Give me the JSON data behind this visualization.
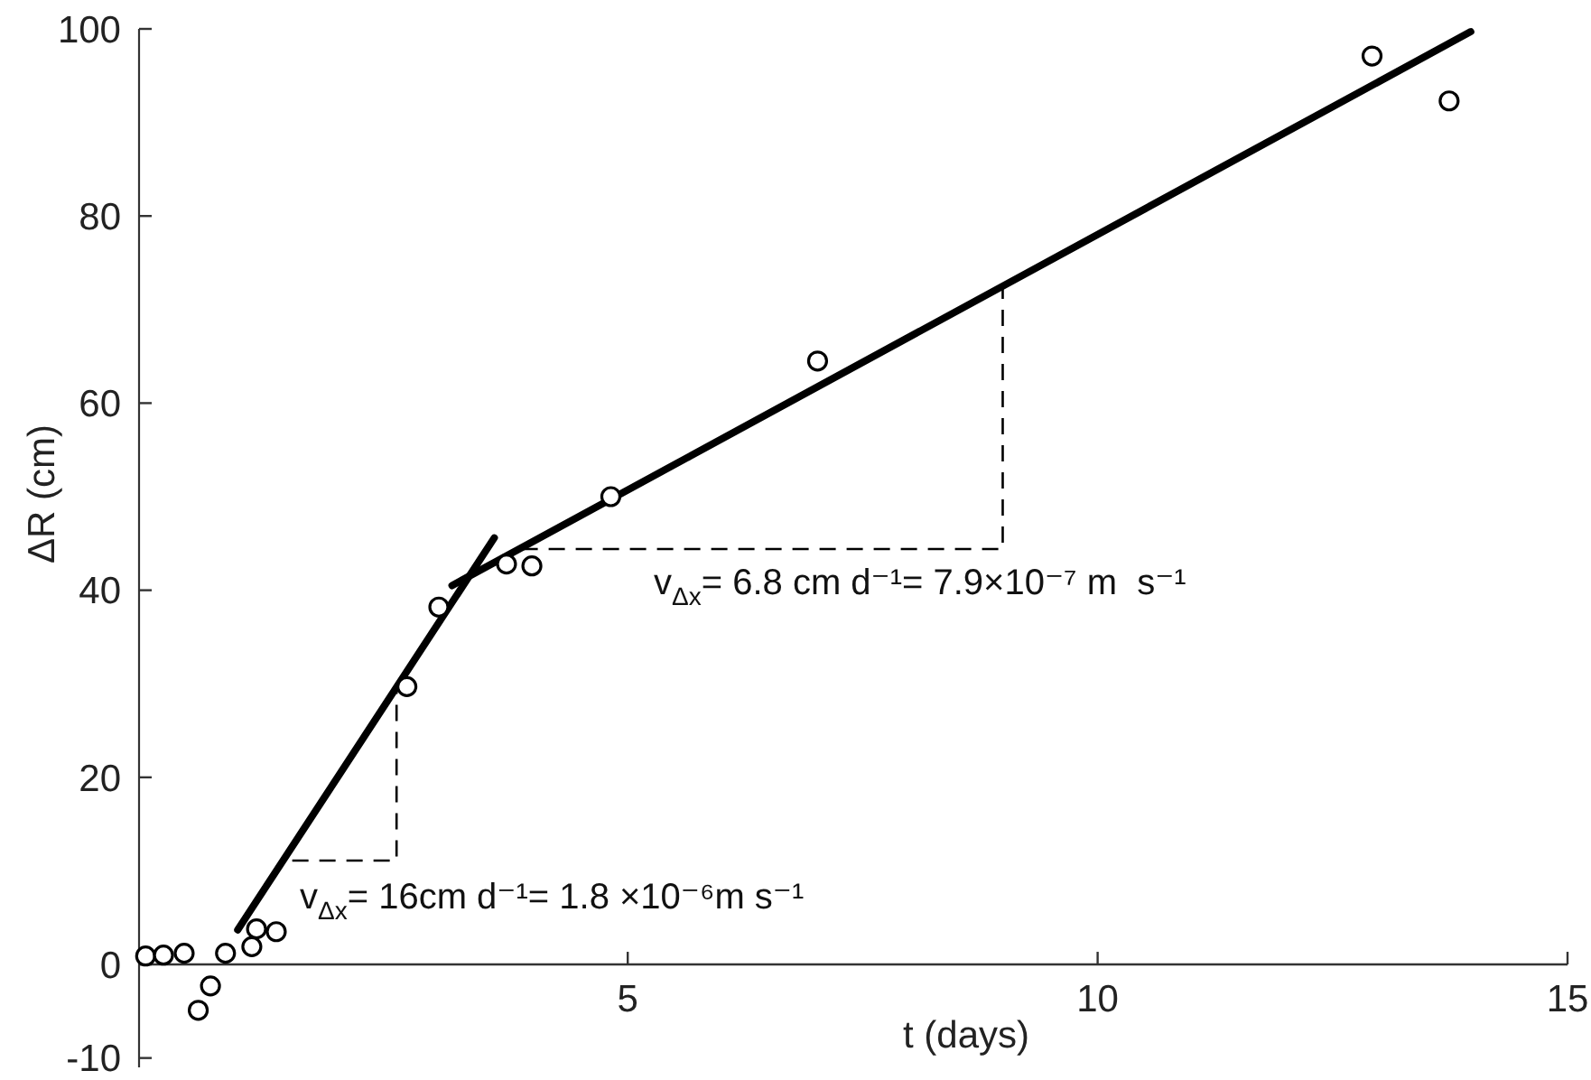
{
  "chart_data": {
    "type": "scatter",
    "xlabel": "t (days)",
    "ylabel": "ΔR (cm)",
    "xlim": [
      -0.2,
      15
    ],
    "ylim": [
      -11,
      100
    ],
    "xticks": [
      5,
      10,
      15
    ],
    "yticks": [
      -10,
      0,
      20,
      40,
      60,
      80,
      100
    ],
    "series": [
      {
        "type": "line",
        "color": "#000000",
        "x": [
          0.85,
          3.58
        ],
        "values": [
          3.7,
          45.6
        ]
      },
      {
        "type": "line",
        "color": "#000000",
        "x": [
          3.13,
          13.97
        ],
        "values": [
          40.5,
          99.7
        ]
      },
      {
        "type": "line",
        "color": "#000000",
        "line_style": "dashed",
        "x": [
          1.43,
          2.54,
          2.54
        ],
        "values": [
          11.1,
          11.1,
          29.6
        ]
      },
      {
        "type": "line",
        "color": "#000000",
        "line_style": "dashed",
        "x": [
          3.87,
          8.99,
          8.99
        ],
        "values": [
          44.4,
          44.4,
          72.5
        ]
      },
      {
        "color": "#000000",
        "marker": "circle",
        "x": [
          -0.13,
          0.06,
          0.28,
          0.43,
          0.56,
          0.72,
          1.0,
          1.05,
          1.26,
          2.65,
          2.99,
          3.71,
          3.98,
          4.82,
          7.02,
          12.92,
          13.74
        ],
        "values": [
          0.9,
          1.0,
          1.2,
          -4.9,
          -2.3,
          1.2,
          1.9,
          3.8,
          3.5,
          29.7,
          38.2,
          42.8,
          42.6,
          50.0,
          64.5,
          97.1,
          92.3
        ]
      }
    ],
    "annotations": [
      "v$_{Δx}$= 16cm d⁻¹= 1.8 ×10⁻⁶m s⁻¹",
      "v$_{Δx}$= 6.8 cm d⁻¹= 7.9×10⁻⁷ m  s⁻¹"
    ]
  }
}
